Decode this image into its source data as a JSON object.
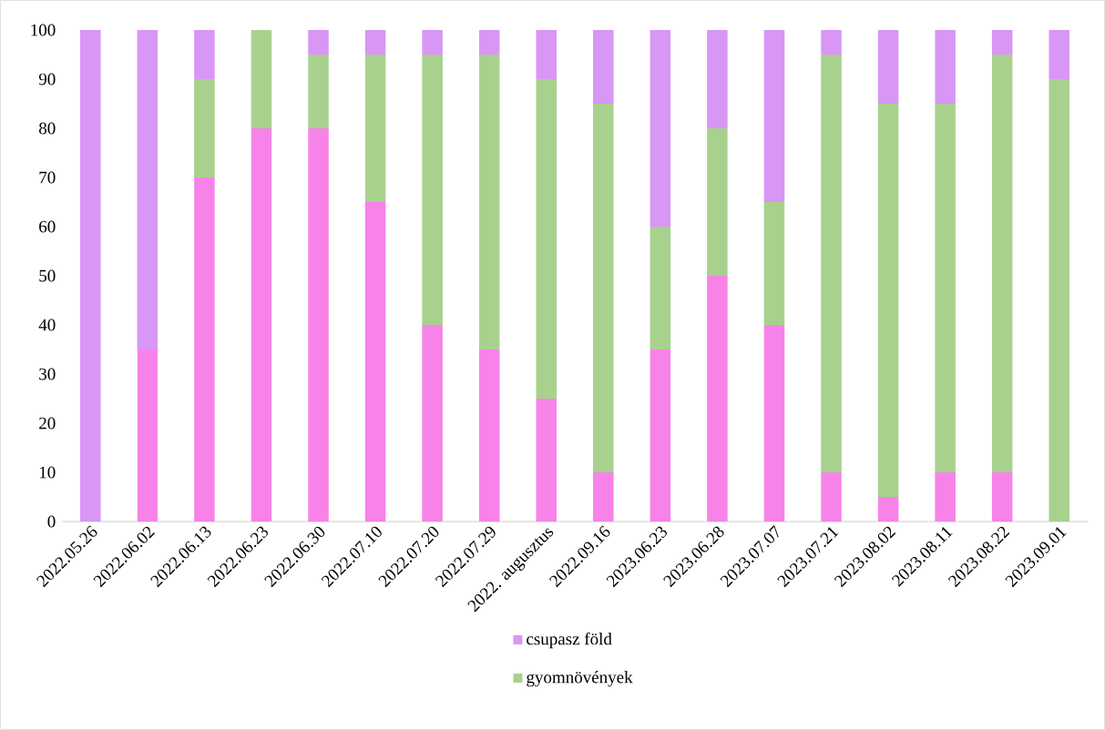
{
  "chart_data": {
    "type": "bar",
    "stacked": true,
    "categories": [
      "2022.05.26",
      "2022.06.02",
      "2022.06.13",
      "2022.06.23",
      "2022.06.30",
      "2022.07.10",
      "2022.07.20",
      "2022.07.29",
      "2022. augusztus",
      "2022.09.16",
      "2023.06.23",
      "2023.06.28",
      "2023.07.07",
      "2023.07.21",
      "2023.08.02",
      "2023.08.11",
      "2023.08.22",
      "2023.09.01"
    ],
    "series": [
      {
        "color": "#f783e8",
        "values": [
          0,
          35,
          70,
          80,
          80,
          65,
          40,
          35,
          25,
          10,
          35,
          50,
          40,
          10,
          5,
          10,
          10,
          0
        ]
      },
      {
        "name": "gyomnövények",
        "color": "#a9d18e",
        "values": [
          0,
          0,
          20,
          20,
          15,
          30,
          55,
          60,
          65,
          75,
          25,
          30,
          25,
          85,
          80,
          75,
          85,
          90
        ]
      },
      {
        "name": "csupasz föld",
        "color": "#d896f5",
        "values": [
          100,
          65,
          10,
          0,
          5,
          5,
          5,
          5,
          10,
          15,
          40,
          20,
          35,
          5,
          15,
          15,
          5,
          10
        ]
      }
    ],
    "ylim": [
      0,
      100
    ],
    "yticks": [
      0,
      10,
      20,
      30,
      40,
      50,
      60,
      70,
      80,
      90,
      100
    ],
    "legend": "bottom"
  }
}
